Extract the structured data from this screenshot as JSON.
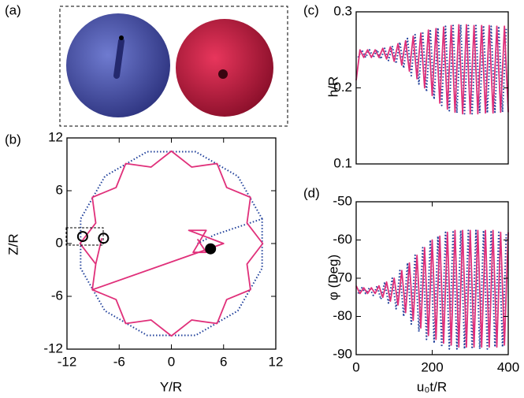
{
  "panel_a": {
    "label": "(a)"
  },
  "chart_data": [
    {
      "type": "line",
      "label": "(b)",
      "xlabel": "Y/R",
      "ylabel": "Z/R",
      "xlim": [
        -12,
        12
      ],
      "ylim": [
        -12,
        12
      ],
      "xticks": [
        -12,
        -6,
        0,
        6,
        12
      ],
      "yticks": [
        -12,
        -6,
        0,
        6,
        12
      ],
      "series": [
        {
          "color": "#1f3f9a",
          "linestyle": "dotted",
          "x": [
            10.43,
            7.64,
            2.8,
            -2.8,
            -7.64,
            -10.43,
            -10.43,
            -7.64,
            -2.8,
            2.8,
            7.64,
            10.43,
            10.43,
            5,
            3
          ],
          "values": [
            2.8,
            7.64,
            10.43,
            10.43,
            7.64,
            2.8,
            -2.8,
            -7.64,
            -10.43,
            -10.43,
            -7.64,
            -2.8,
            2.8,
            1,
            0
          ]
        },
        {
          "color": "#e0307a",
          "linestyle": "solid",
          "x": [
            -8,
            -8.69,
            -9.09,
            -6.36,
            -5.25,
            -2.33,
            0,
            2.33,
            5.25,
            6.36,
            9.09,
            8.69,
            10.5,
            8.69,
            9.09,
            6.36,
            5.25,
            2.33,
            0,
            -2.33,
            -5.25,
            -6.36,
            -9.09,
            -8.69,
            -10.5,
            -8.69,
            -9.09,
            6,
            2,
            4,
            2.5,
            4,
            3
          ],
          "values": [
            0.6,
            -2.33,
            -5.25,
            -6.36,
            -9.09,
            -8.69,
            -10.5,
            -8.69,
            -9.09,
            -6.36,
            -5.25,
            -2.33,
            0,
            2.33,
            5.25,
            6.36,
            9.09,
            8.69,
            10.5,
            8.69,
            9.09,
            6.36,
            5.25,
            2.33,
            0,
            -2.33,
            -5.25,
            0,
            1.5,
            1.5,
            -1,
            -1,
            0.5
          ]
        }
      ],
      "markers": [
        {
          "fill": "none",
          "x": [
            -10.2,
            -7.8
          ],
          "values": [
            0.8,
            0.6
          ]
        },
        {
          "fill": "#000000",
          "x": [
            4.5
          ],
          "values": [
            -0.6
          ]
        }
      ]
    },
    {
      "type": "line",
      "label": "(c)",
      "ylabel": "h/R",
      "xlim": [
        0,
        400
      ],
      "ylim": [
        0.1,
        0.3
      ],
      "yticks": [
        0.1,
        0.2,
        0.3
      ],
      "series": [
        {
          "color": "#1f3f9a",
          "linestyle": "dotted",
          "x": [
            5,
            15,
            25,
            35,
            45,
            55,
            65,
            75,
            85,
            95,
            105,
            115,
            125,
            135,
            145,
            155,
            165,
            175,
            185,
            195,
            205,
            215,
            225,
            235,
            245,
            255,
            265,
            275,
            285,
            295,
            305,
            315,
            325,
            335,
            345,
            355,
            365,
            375,
            385,
            395
          ],
          "values": [
            0.24,
            0.25,
            0.24,
            0.25,
            0.24,
            0.25,
            0.238,
            0.252,
            0.236,
            0.255,
            0.232,
            0.26,
            0.226,
            0.265,
            0.216,
            0.27,
            0.205,
            0.274,
            0.195,
            0.277,
            0.185,
            0.279,
            0.177,
            0.281,
            0.17,
            0.282,
            0.167,
            0.283,
            0.166,
            0.282,
            0.166,
            0.282,
            0.167,
            0.282,
            0.167,
            0.281,
            0.168,
            0.281,
            0.168,
            0.28
          ]
        },
        {
          "color": "#e0307a",
          "linestyle": "solid",
          "x": [
            0,
            10,
            20,
            30,
            40,
            50,
            60,
            70,
            80,
            90,
            100,
            110,
            120,
            130,
            140,
            150,
            160,
            170,
            180,
            190,
            200,
            210,
            220,
            230,
            240,
            250,
            260,
            270,
            280,
            290,
            300,
            310,
            320,
            330,
            340,
            350,
            360,
            370,
            380,
            390,
            400
          ],
          "values": [
            0.21,
            0.25,
            0.24,
            0.25,
            0.24,
            0.25,
            0.24,
            0.252,
            0.238,
            0.254,
            0.235,
            0.258,
            0.23,
            0.262,
            0.222,
            0.268,
            0.212,
            0.272,
            0.2,
            0.276,
            0.19,
            0.278,
            0.18,
            0.28,
            0.172,
            0.282,
            0.168,
            0.283,
            0.166,
            0.283,
            0.166,
            0.282,
            0.166,
            0.282,
            0.167,
            0.282,
            0.167,
            0.281,
            0.168,
            0.281,
            0.168
          ]
        }
      ]
    },
    {
      "type": "line",
      "label": "(d)",
      "xlabel": "u₀t/R",
      "ylabel": "φ (Deg)",
      "xlim": [
        0,
        400
      ],
      "ylim": [
        -90,
        -50
      ],
      "xticks": [
        0,
        200,
        400
      ],
      "yticks": [
        -90,
        -80,
        -70,
        -60,
        -50
      ],
      "series": [
        {
          "color": "#1f3f9a",
          "linestyle": "dotted",
          "x": [
            5,
            15,
            25,
            35,
            45,
            55,
            65,
            75,
            85,
            95,
            105,
            115,
            125,
            135,
            145,
            155,
            165,
            175,
            185,
            195,
            205,
            215,
            225,
            235,
            245,
            255,
            265,
            275,
            285,
            295,
            305,
            315,
            325,
            335,
            345,
            355,
            365,
            375,
            385,
            395
          ],
          "values": [
            -74,
            -72.5,
            -74,
            -72.5,
            -74.5,
            -72,
            -75.5,
            -71,
            -76.5,
            -70,
            -78,
            -68,
            -80,
            -66,
            -82,
            -64,
            -84,
            -62,
            -86,
            -60,
            -87,
            -59,
            -88,
            -58,
            -88.5,
            -57.5,
            -88.5,
            -57.5,
            -88.5,
            -57.5,
            -88.5,
            -57.5,
            -88.5,
            -57.5,
            -88.5,
            -57.5,
            -88,
            -58,
            -88,
            -58
          ]
        },
        {
          "color": "#e0307a",
          "linestyle": "solid",
          "x": [
            0,
            10,
            20,
            30,
            40,
            50,
            60,
            70,
            80,
            90,
            100,
            110,
            120,
            130,
            140,
            150,
            160,
            170,
            180,
            190,
            200,
            210,
            220,
            230,
            240,
            250,
            260,
            270,
            280,
            290,
            300,
            310,
            320,
            330,
            340,
            350,
            360,
            370,
            380,
            390,
            400
          ],
          "values": [
            -72,
            -74,
            -72.5,
            -74,
            -72.5,
            -74,
            -72,
            -75,
            -71,
            -76,
            -70,
            -77,
            -68,
            -79,
            -66,
            -81,
            -64,
            -83,
            -62,
            -85,
            -60,
            -86,
            -59,
            -87,
            -58,
            -87.5,
            -57.5,
            -88,
            -57.5,
            -88,
            -57.5,
            -88,
            -57.5,
            -88,
            -57.5,
            -88,
            -57.5,
            -88,
            -58,
            -87.5,
            -58
          ]
        }
      ]
    }
  ]
}
